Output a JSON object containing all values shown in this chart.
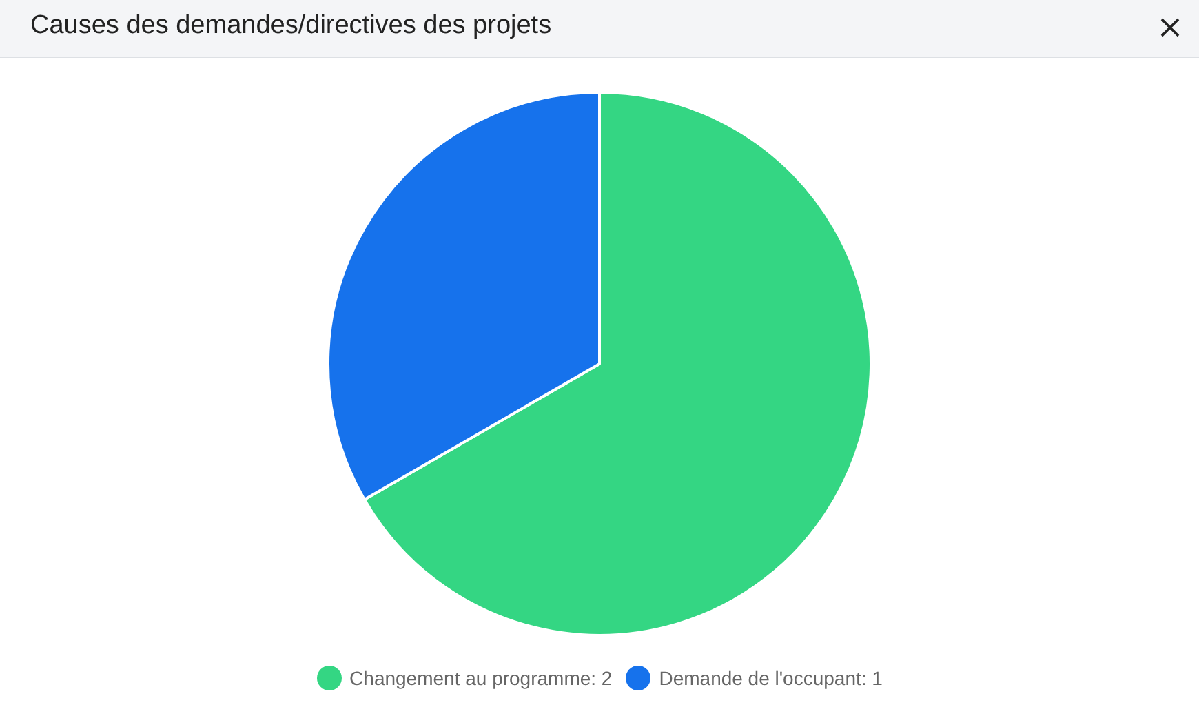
{
  "chart_data": {
    "type": "pie",
    "title": "Causes des demandes/directives des projets",
    "categories": [
      "Changement au programme: 2",
      "Demande de l'occupant: 1"
    ],
    "values": [
      2,
      1
    ],
    "colors": [
      "#34d683",
      "#1672ec"
    ],
    "legend": "bottom"
  }
}
